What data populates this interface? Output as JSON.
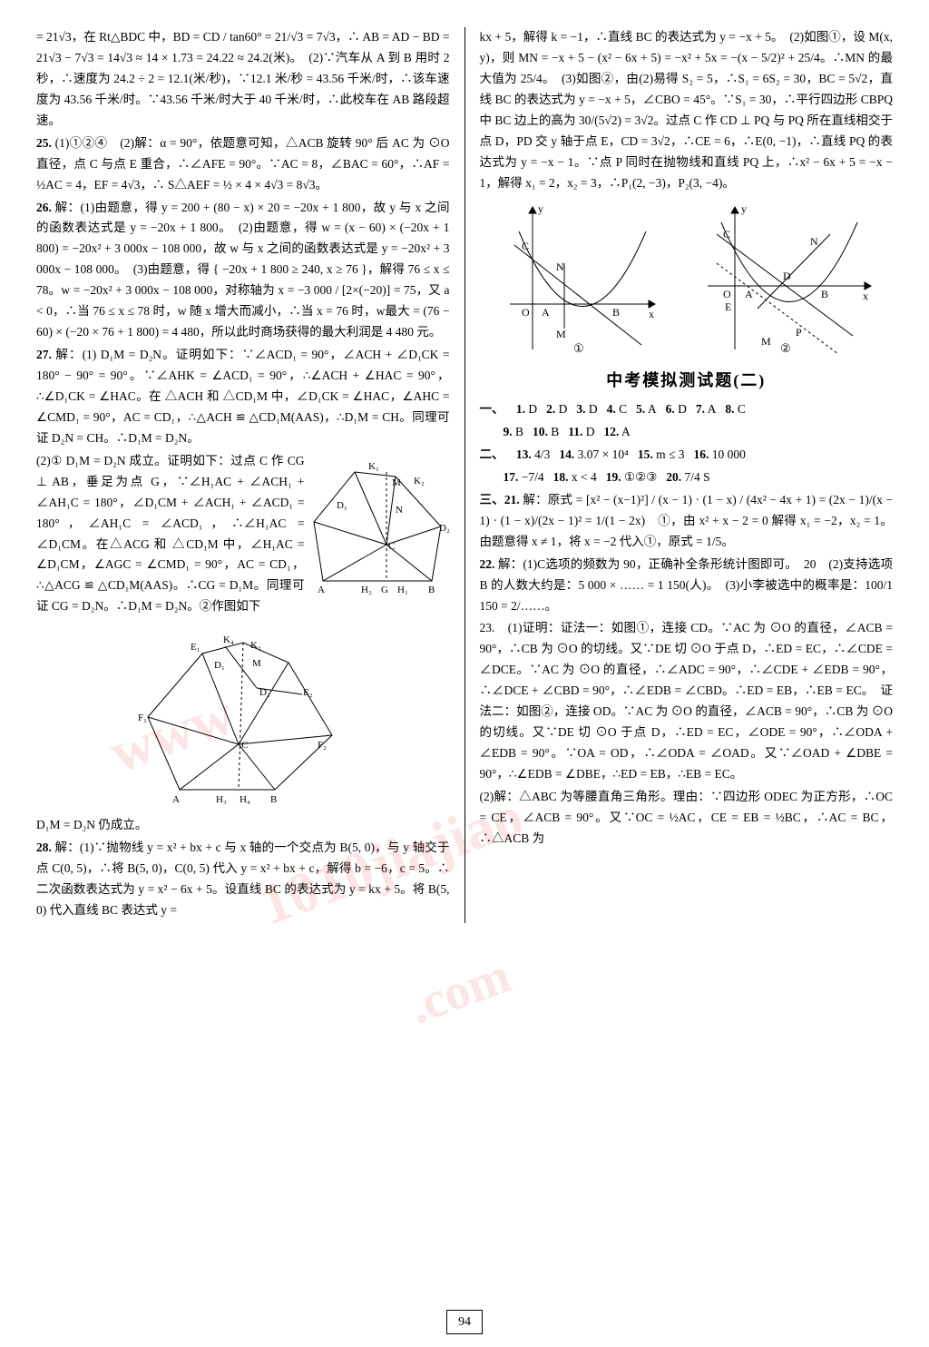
{
  "page_number": "94",
  "watermark": {
    "text1": "www",
    "text2": "1010jiajiao",
    "text3": ".com"
  },
  "left": {
    "p24_tail": "= 21√3，在 Rt△BDC 中，BD = CD / tan60° = 21/√3 = 7√3，∴ AB = AD − BD = 21√3 − 7√3 = 14√3 ≈ 14 × 1.73 = 24.22 ≈ 24.2(米)。　(2)∵汽车从 A 到 B 用时 2 秒，∴速度为 24.2 ÷ 2 = 12.1(米/秒)，∵12.1 米/秒 = 43.56 千米/时，∴该车速度为 43.56 千米/时。∵43.56 千米/时大于 40 千米/时，∴此校车在 AB 路段超速。",
    "p25": "(1)①②④　(2)解：α = 90°，依题意可知，△ACB 旋转 90° 后 AC 为 ⊙O 直径，点 C 与点 E 重合，∴∠AFE = 90°。∵AC = 8，∠BAC = 60°，∴AF = ½AC = 4，EF = 4√3，∴ S△AEF = ½ × 4 × 4√3 = 8√3。",
    "p26": "解：(1)由题意，得 y = 200 + (80 − x) × 20 = −20x + 1 800，故 y 与 x 之间的函数表达式是 y = −20x + 1 800。　(2)由题意，得 w = (x − 60) × (−20x + 1 800) = −20x² + 3 000x − 108 000，故 w 与 x 之间的函数表达式是 y = −20x² + 3 000x − 108 000。　(3)由题意，得 { −20x + 1 800 ≥ 240,  x ≥ 76 }，解得 76 ≤ x ≤ 78。w = −20x² + 3 000x − 108 000，对称轴为 x = −3 000 / [2×(−20)] = 75，又 a < 0，∴当 76 ≤ x ≤ 78 时，w 随 x 增大而减小，∴当 x = 76 时，w最大 = (76 − 60) × (−20 × 76 + 1 800) = 4 480，所以此时商场获得的最大利润是 4 480 元。",
    "p27a": "解：(1) D₁M = D₂N。证明如下：∵∠ACD₁ = 90°，∠ACH + ∠D₁CK = 180° − 90° = 90°。∵∠AHK = ∠ACD₁ = 90°，∴∠ACH + ∠HAC = 90°，∴∠D₁CK = ∠HAC。在 △ACH 和 △CD₁M 中，∠D₁CK = ∠HAC，∠AHC = ∠CMD₁ = 90°，AC = CD₁，∴△ACH ≌ △CD₁M(AAS)，∴D₁M = CH。同理可证 D₂N = CH。∴D₁M = D₂N。",
    "p27b": "(2)① D₁M = D₂N 成立。证明如下：过点 C 作 CG ⊥ AB，垂足为点 G，∵∠H₁AC + ∠ACH₁ + ∠AH₁C = 180°，∠D₁CM + ∠ACH₁ + ∠ACD₁ = 180°，∠AH₁C = ∠ACD₁，∴∠H₁AC = ∠D₁CM。在△ACG 和 △CD₁M 中，∠H₁AC = ∠D₁CM，∠AGC = ∠CMD₁ = 90°，AC = CD₁，∴△ACG ≌ △CD₁M(AAS)。∴CG = D₁M。同理可证 CG = D₂N。∴D₁M = D₂N。②作图如下",
    "p27c": "D₁M = D₂N 仍成立。",
    "p28": "解：(1)∵抛物线 y = x² + bx + c 与 x 轴的一个交点为 B(5, 0)，与 y 轴交于点 C(0, 5)，∴将 B(5, 0)，C(0, 5) 代入 y = x² + bx + c，解得 b = −6，c = 5。∴二次函数表达式为 y = x² − 6x + 5。设直线 BC 的表达式为 y = kx + 5。将 B(5, 0) 代入直线 BC 表达式 y =",
    "figure1": {
      "labels": [
        "K₁",
        "M",
        "K₂",
        "D₁",
        "D₂",
        "N",
        "C",
        "A",
        "H₂",
        "G",
        "H₁",
        "B"
      ],
      "line_color": "#000000",
      "stroke_width": 1
    },
    "figure2": {
      "labels": [
        "E₁",
        "K₄",
        "K₃",
        "D₁",
        "M",
        "D₂",
        "E₂",
        "F₁",
        "C",
        "F₂",
        "A",
        "H₃",
        "H₄",
        "B"
      ],
      "line_color": "#000000",
      "stroke_width": 1
    }
  },
  "right": {
    "p28_cont": "kx + 5，解得 k = −1，∴直线 BC 的表达式为 y = −x + 5。　(2)如图①，设 M(x, y)，则 MN = −x + 5 − (x² − 6x + 5) = −x² + 5x = −(x − 5/2)² + 25/4。∴MN 的最大值为 25/4。　(3)如图②，由(2)易得 S₂ = 5，∴S₁ = 6S₂ = 30，BC = 5√2，直线 BC 的表达式为 y = −x + 5，∠CBO = 45°。∵S₁ = 30，∴平行四边形 CBPQ 中 BC 边上的高为 30/(5√2) = 3√2。过点 C 作 CD ⊥ PQ 与 PQ 所在直线相交于点 D，PD 交 y 轴于点 E，CD = 3√2，∴CE = 6，∴E(0, −1)，∴直线 PQ 的表达式为 y = −x − 1。∵点 P 同时在抛物线和直线 PQ 上，∴x² − 6x + 5 = −x − 1，解得 x₁ = 2，x₂ = 3，∴P₁(2, −3)，P₂(3, −4)。",
    "graph_pair": {
      "caption_left": "①",
      "caption_right": "②",
      "left_labels": [
        "y",
        "C",
        "N",
        "O",
        "A",
        "B",
        "x",
        "M"
      ],
      "right_labels": [
        "y",
        "C",
        "N",
        "D",
        "O",
        "A",
        "B",
        "x",
        "E",
        "P",
        "M"
      ],
      "curve_color": "#000000",
      "axis_color": "#000000"
    },
    "exam_title": "中考模拟测试题(二)",
    "mcq_prefix": "一、",
    "mcq1": [
      {
        "n": "1.",
        "a": "D"
      },
      {
        "n": "2.",
        "a": "D"
      },
      {
        "n": "3.",
        "a": "D"
      },
      {
        "n": "4.",
        "a": "C"
      },
      {
        "n": "5.",
        "a": "A"
      },
      {
        "n": "6.",
        "a": "D"
      },
      {
        "n": "7.",
        "a": "A"
      },
      {
        "n": "8.",
        "a": "C"
      }
    ],
    "mcq2": [
      {
        "n": "9.",
        "a": "B"
      },
      {
        "n": "10.",
        "a": "B"
      },
      {
        "n": "11.",
        "a": "D"
      },
      {
        "n": "12.",
        "a": "A"
      }
    ],
    "fill_prefix": "二、",
    "fill1": [
      {
        "n": "13.",
        "a": "4/3"
      },
      {
        "n": "14.",
        "a": "3.07 × 10⁴"
      },
      {
        "n": "15.",
        "a": "m ≤ 3"
      },
      {
        "n": "16.",
        "a": "10 000"
      }
    ],
    "fill2": [
      {
        "n": "17.",
        "a": "−7/4"
      },
      {
        "n": "18.",
        "a": "x < 4"
      },
      {
        "n": "19.",
        "a": "①②③"
      },
      {
        "n": "20.",
        "a": "7/4 S"
      }
    ],
    "p3_prefix": "三、",
    "p21": "解：原式 = [x² − (x−1)²] / (x − 1) · (1 − x) / (4x² − 4x + 1) = (2x − 1)/(x − 1) · (1 − x)/(2x − 1)² = 1/(1 − 2x)　①，由 x² + x − 2 = 0 解得 x₁ = −2，x₂ = 1。由题意得 x ≠ 1，将 x = −2 代入①，原式 = 1/5。",
    "p22": "解：(1)C选项的频数为 90，正确补全条形统计图即可。　20　(2)支持选项 B 的人数大约是：5 000 × …… = 1 150(人)。　(3)小李被选中的概率是：100/1 150 = 2/……。",
    "p23a": "23.　(1)证明：证法一：如图①，连接 CD。∵AC 为 ⊙O 的直径，∠ACB = 90°，∴CB 为 ⊙O 的切线。又∵DE 切 ⊙O 于点 D，∴ED = EC，∴∠CDE = ∠DCE。∵AC 为 ⊙O 的直径，∴∠ADC = 90°，∴∠CDE + ∠EDB = 90°，∴∠DCE + ∠CBD = 90°，∴∠EDB = ∠CBD。∴ED = EB，∴EB = EC。　证法二：如图②，连接 OD。∵AC 为 ⊙O 的直径，∠ACB = 90°，∴CB 为 ⊙O 的切线。又∵DE 切 ⊙O 于点 D，∴ED = EC，∠ODE = 90°，∴∠ODA + ∠EDB = 90°。∵OA = OD，∴∠ODA = ∠OAD。又∵∠OAD + ∠DBE = 90°，∴∠EDB = ∠DBE，∴ED = EB，∴EB = EC。",
    "p23b": "(2)解：△ABC 为等腰直角三角形。理由：∵四边形 ODEC 为正方形，∴OC = CE，∠ACB = 90°。又∵OC = ½AC，CE = EB = ½BC，∴AC = BC，∴△ACB 为"
  }
}
